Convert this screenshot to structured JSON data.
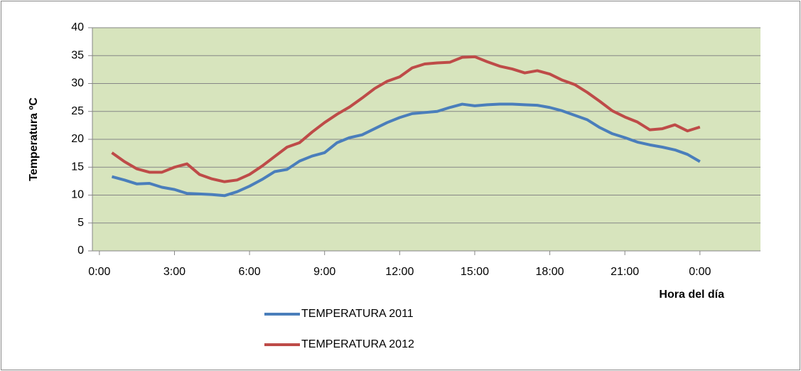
{
  "chart_data": {
    "type": "line",
    "x_label": "Hora del día",
    "y_label": "Temperatura ºC",
    "x": [
      0.5,
      1,
      1.5,
      2,
      2.5,
      3,
      3.5,
      4,
      4.5,
      5,
      5.5,
      6,
      6.5,
      7,
      7.5,
      8,
      8.5,
      9,
      9.5,
      10,
      10.5,
      11,
      11.5,
      12,
      12.5,
      13,
      13.5,
      14,
      14.5,
      15,
      15.5,
      16,
      16.5,
      17,
      17.5,
      18,
      18.5,
      19,
      19.5,
      20,
      20.5,
      21,
      21.5,
      22,
      22.5,
      23,
      23.5,
      24
    ],
    "series": [
      {
        "name": "TEMPERATURA 2011",
        "color": "#4a7ebb",
        "values": [
          13.3,
          12.7,
          12.0,
          12.1,
          11.4,
          11.0,
          10.3,
          10.2,
          10.1,
          9.9,
          10.6,
          11.6,
          12.8,
          14.2,
          14.6,
          16.1,
          17.0,
          17.6,
          19.4,
          20.3,
          20.8,
          21.9,
          23.0,
          23.9,
          24.6,
          24.8,
          25.0,
          25.7,
          26.3,
          26.0,
          26.2,
          26.3,
          26.3,
          26.2,
          26.1,
          25.7,
          25.1,
          24.3,
          23.5,
          22.1,
          21.0,
          20.3,
          19.5,
          19.0,
          18.6,
          18.1,
          17.3,
          16.0
        ]
      },
      {
        "name": "TEMPERATURA 2012",
        "color": "#be4b48",
        "values": [
          17.6,
          16.0,
          14.7,
          14.1,
          14.1,
          15.0,
          15.6,
          13.7,
          12.9,
          12.4,
          12.7,
          13.7,
          15.2,
          16.9,
          18.6,
          19.4,
          21.3,
          23.0,
          24.5,
          25.8,
          27.4,
          29.1,
          30.4,
          31.2,
          32.8,
          33.5,
          33.7,
          33.8,
          34.7,
          34.8,
          33.9,
          33.1,
          32.6,
          31.9,
          32.3,
          31.7,
          30.6,
          29.8,
          28.4,
          26.8,
          25.1,
          24.0,
          23.1,
          21.7,
          21.9,
          22.6,
          21.5,
          22.2
        ]
      }
    ],
    "xlim": [
      -0.28,
      26.42
    ],
    "xticks": [
      {
        "value": 0,
        "label": "0:00"
      },
      {
        "value": 3,
        "label": "3:00"
      },
      {
        "value": 6,
        "label": "6:00"
      },
      {
        "value": 9,
        "label": "9:00"
      },
      {
        "value": 12,
        "label": "12:00"
      },
      {
        "value": 15,
        "label": "15:00"
      },
      {
        "value": 18,
        "label": "18:00"
      },
      {
        "value": 21,
        "label": "21:00"
      },
      {
        "value": 24,
        "label": "0:00"
      }
    ],
    "ylim": [
      0,
      40
    ],
    "yticks": [
      0,
      5,
      10,
      15,
      20,
      25,
      30,
      35,
      40
    ],
    "grid": true,
    "plot_background": "#d7e4bd",
    "legend": "bottom"
  }
}
